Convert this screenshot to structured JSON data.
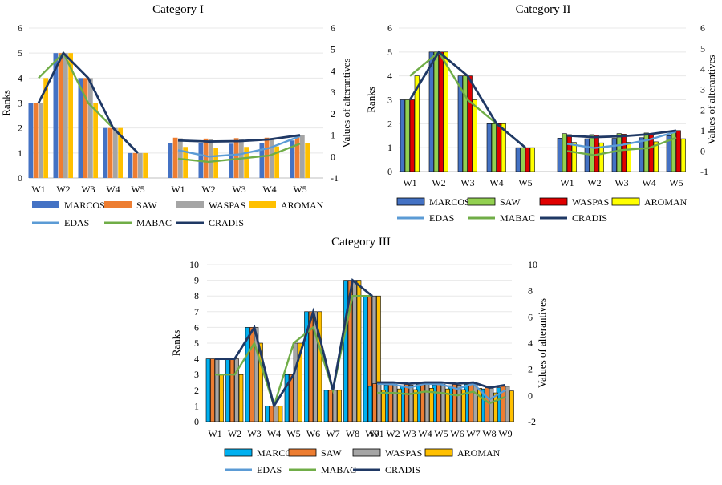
{
  "colors": {
    "MARCOS": "#4472c4",
    "SAW": "#ed7d31",
    "WASPAS": "#a5a5a5",
    "AROMAN": "#ffc000",
    "EDAS": "#5b9bd5",
    "MABAC": "#70ad47",
    "CRADIS": "#1f3864",
    "II_MARCOS": "#4472c4",
    "II_SAW": "#92d050",
    "II_WASPAS": "#e00000",
    "II_AROMAN": "#ffff00",
    "III_MARCOS": "#00b0f0",
    "III_SAW": "#ed7d31",
    "III_WASPAS": "#a5a5a5",
    "III_AROMAN": "#ffc000"
  },
  "chart_data": [
    {
      "type": "bar",
      "title": "Category I",
      "ylabel": "Ranks",
      "y2label": "Values of alterantives",
      "ylim": [
        0,
        6
      ],
      "y2lim": [
        -1,
        6
      ],
      "categories": [
        "W1",
        "W2",
        "W3",
        "W4",
        "W5"
      ],
      "line_categories": [
        "W1",
        "W2",
        "W3",
        "W4",
        "W5"
      ],
      "yticks": [
        "0",
        "1",
        "2",
        "3",
        "4",
        "5",
        "6"
      ],
      "y2ticks": [
        "-1",
        "0",
        "1",
        "2",
        "3",
        "4",
        "5",
        "6"
      ],
      "legend_bars": [
        "MARCOS",
        "SAW",
        "WASPAS",
        "AROMAN"
      ],
      "legend_lines": [
        "EDAS",
        "MABAC",
        "CRADIS"
      ],
      "rank_series": [
        {
          "name": "MARCOS",
          "values": [
            3,
            5,
            4,
            2,
            1
          ]
        },
        {
          "name": "SAW",
          "values": [
            3,
            5,
            4,
            2,
            1
          ]
        },
        {
          "name": "WASPAS",
          "values": [
            3,
            5,
            4,
            2,
            1
          ]
        },
        {
          "name": "AROMAN",
          "values": [
            4,
            5,
            3,
            2,
            1
          ]
        }
      ],
      "rank_lines": [
        {
          "name": "EDAS",
          "values": [
            3,
            5,
            4,
            2,
            1
          ]
        },
        {
          "name": "MABAC",
          "values": [
            4,
            5,
            3,
            2,
            1
          ]
        },
        {
          "name": "CRADIS",
          "values": [
            3,
            5,
            4,
            2,
            1
          ]
        }
      ],
      "value_series": [
        {
          "name": "MARCOS",
          "values": [
            0.63,
            0.62,
            0.6,
            0.64,
            0.75
          ]
        },
        {
          "name": "SAW",
          "values": [
            0.88,
            0.84,
            0.86,
            0.88,
            1.0
          ]
        },
        {
          "name": "WASPAS",
          "values": [
            0.85,
            0.8,
            0.83,
            0.86,
            1.0
          ]
        },
        {
          "name": "AROMAN",
          "values": [
            0.45,
            0.4,
            0.45,
            0.47,
            0.62
          ]
        }
      ],
      "value_lines": [
        {
          "name": "EDAS",
          "values": [
            0.3,
            0.0,
            0.1,
            0.4,
            0.95
          ]
        },
        {
          "name": "MABAC",
          "values": [
            -0.1,
            -0.25,
            -0.1,
            0.05,
            0.6
          ]
        },
        {
          "name": "CRADIS",
          "values": [
            0.75,
            0.7,
            0.72,
            0.8,
            1.0
          ]
        }
      ]
    },
    {
      "type": "bar",
      "title": "Category II",
      "ylabel": "Ranks",
      "y2label": "Values of alterantives",
      "ylim": [
        0,
        6
      ],
      "y2lim": [
        -1,
        6
      ],
      "categories": [
        "W1",
        "W2",
        "W3",
        "W4",
        "W5"
      ],
      "line_categories": [
        "W1",
        "W2",
        "W3",
        "W4",
        "W5"
      ],
      "yticks": [
        "0",
        "1",
        "2",
        "3",
        "4",
        "5",
        "6"
      ],
      "y2ticks": [
        "-1",
        "0",
        "1",
        "2",
        "3",
        "4",
        "5",
        "6"
      ],
      "legend_bars": [
        "MARCOS",
        "SAW",
        "WASPAS",
        "AROMAN"
      ],
      "legend_lines": [
        "EDAS",
        "MABAC",
        "CRADIS"
      ],
      "rank_series": [
        {
          "name": "MARCOS",
          "values": [
            3,
            5,
            4,
            2,
            1
          ]
        },
        {
          "name": "SAW",
          "values": [
            3,
            5,
            4,
            2,
            1
          ]
        },
        {
          "name": "WASPAS",
          "values": [
            3,
            5,
            4,
            2,
            1
          ]
        },
        {
          "name": "AROMAN",
          "values": [
            4,
            5,
            3,
            2,
            1
          ]
        }
      ],
      "rank_lines": [
        {
          "name": "EDAS",
          "values": [
            3,
            5,
            4,
            2,
            1
          ]
        },
        {
          "name": "MABAC",
          "values": [
            4,
            5,
            3,
            2,
            1
          ]
        },
        {
          "name": "CRADIS",
          "values": [
            3,
            5,
            4,
            2,
            1
          ]
        }
      ],
      "value_series": [
        {
          "name": "MARCOS",
          "values": [
            0.63,
            0.6,
            0.62,
            0.65,
            0.75
          ]
        },
        {
          "name": "SAW",
          "values": [
            0.85,
            0.8,
            0.85,
            0.88,
            1.0
          ]
        },
        {
          "name": "WASPAS",
          "values": [
            0.8,
            0.78,
            0.82,
            0.85,
            1.0
          ]
        },
        {
          "name": "AROMAN",
          "values": [
            0.42,
            0.4,
            0.43,
            0.45,
            0.6
          ]
        }
      ],
      "value_lines": [
        {
          "name": "EDAS",
          "values": [
            0.35,
            0.15,
            0.3,
            0.55,
            0.95
          ]
        },
        {
          "name": "MABAC",
          "values": [
            0.0,
            -0.2,
            0.05,
            0.15,
            0.65
          ]
        },
        {
          "name": "CRADIS",
          "values": [
            0.75,
            0.68,
            0.72,
            0.82,
            1.0
          ]
        }
      ]
    },
    {
      "type": "bar",
      "title": "Category III",
      "ylabel": "Ranks",
      "y2label": "Values of alterantives",
      "ylim": [
        0,
        10
      ],
      "y2lim": [
        -2,
        10
      ],
      "categories": [
        "W1",
        "W2",
        "W3",
        "W4",
        "W5",
        "W6",
        "W7",
        "W8",
        "W9"
      ],
      "line_categories": [
        "W1",
        "W2",
        "W3",
        "W4",
        "W5",
        "W6",
        "W7",
        "W8",
        "W9"
      ],
      "yticks": [
        "0",
        "1",
        "2",
        "3",
        "4",
        "5",
        "6",
        "7",
        "8",
        "9",
        "10"
      ],
      "y2ticks": [
        "-2",
        "0",
        "2",
        "4",
        "6",
        "8",
        "10"
      ],
      "legend_bars": [
        "MARCOS",
        "SAW",
        "WASPAS",
        "AROMAN"
      ],
      "legend_lines": [
        "EDAS",
        "MABAC",
        "CRADIS"
      ],
      "rank_series": [
        {
          "name": "MARCOS",
          "values": [
            4,
            4,
            6,
            1,
            3,
            7,
            2,
            9,
            8
          ]
        },
        {
          "name": "SAW",
          "values": [
            4,
            4,
            6,
            1,
            3,
            7,
            2,
            9,
            8
          ]
        },
        {
          "name": "WASPAS",
          "values": [
            4,
            4,
            6,
            1,
            5,
            7,
            2,
            9,
            8
          ]
        },
        {
          "name": "AROMAN",
          "values": [
            3,
            3,
            5,
            1,
            5,
            7,
            2,
            9,
            8
          ]
        }
      ],
      "rank_lines": [
        {
          "name": "EDAS",
          "values": [
            4,
            4,
            6,
            1,
            3,
            7,
            2,
            9,
            8
          ]
        },
        {
          "name": "MABAC",
          "values": [
            3,
            3,
            5,
            1,
            5,
            6,
            2,
            8,
            8
          ]
        },
        {
          "name": "CRADIS",
          "values": [
            4,
            4,
            6,
            1,
            3,
            7,
            2,
            9,
            8
          ]
        }
      ],
      "value_series": [
        {
          "name": "MARCOS",
          "values": [
            0.7,
            0.8,
            0.75,
            0.85,
            0.8,
            0.75,
            0.85,
            0.5,
            0.6
          ]
        },
        {
          "name": "SAW",
          "values": [
            0.9,
            0.9,
            0.85,
            0.95,
            0.9,
            0.85,
            0.95,
            0.6,
            0.7
          ]
        },
        {
          "name": "WASPAS",
          "values": [
            0.85,
            0.85,
            0.8,
            0.9,
            0.85,
            0.8,
            0.9,
            0.55,
            0.7
          ]
        },
        {
          "name": "AROMAN",
          "values": [
            0.4,
            0.5,
            0.45,
            0.55,
            0.5,
            0.45,
            0.55,
            0.2,
            0.35
          ]
        }
      ],
      "value_lines": [
        {
          "name": "EDAS",
          "values": [
            0.9,
            0.85,
            0.6,
            0.9,
            0.85,
            0.5,
            0.9,
            -0.3,
            0.4
          ]
        },
        {
          "name": "MABAC",
          "values": [
            0.2,
            0.2,
            0.1,
            0.3,
            0.2,
            0.0,
            0.3,
            -0.6,
            -0.1
          ]
        },
        {
          "name": "CRADIS",
          "values": [
            1.0,
            1.0,
            0.9,
            1.0,
            1.0,
            0.9,
            1.0,
            0.6,
            0.8
          ]
        }
      ]
    }
  ]
}
